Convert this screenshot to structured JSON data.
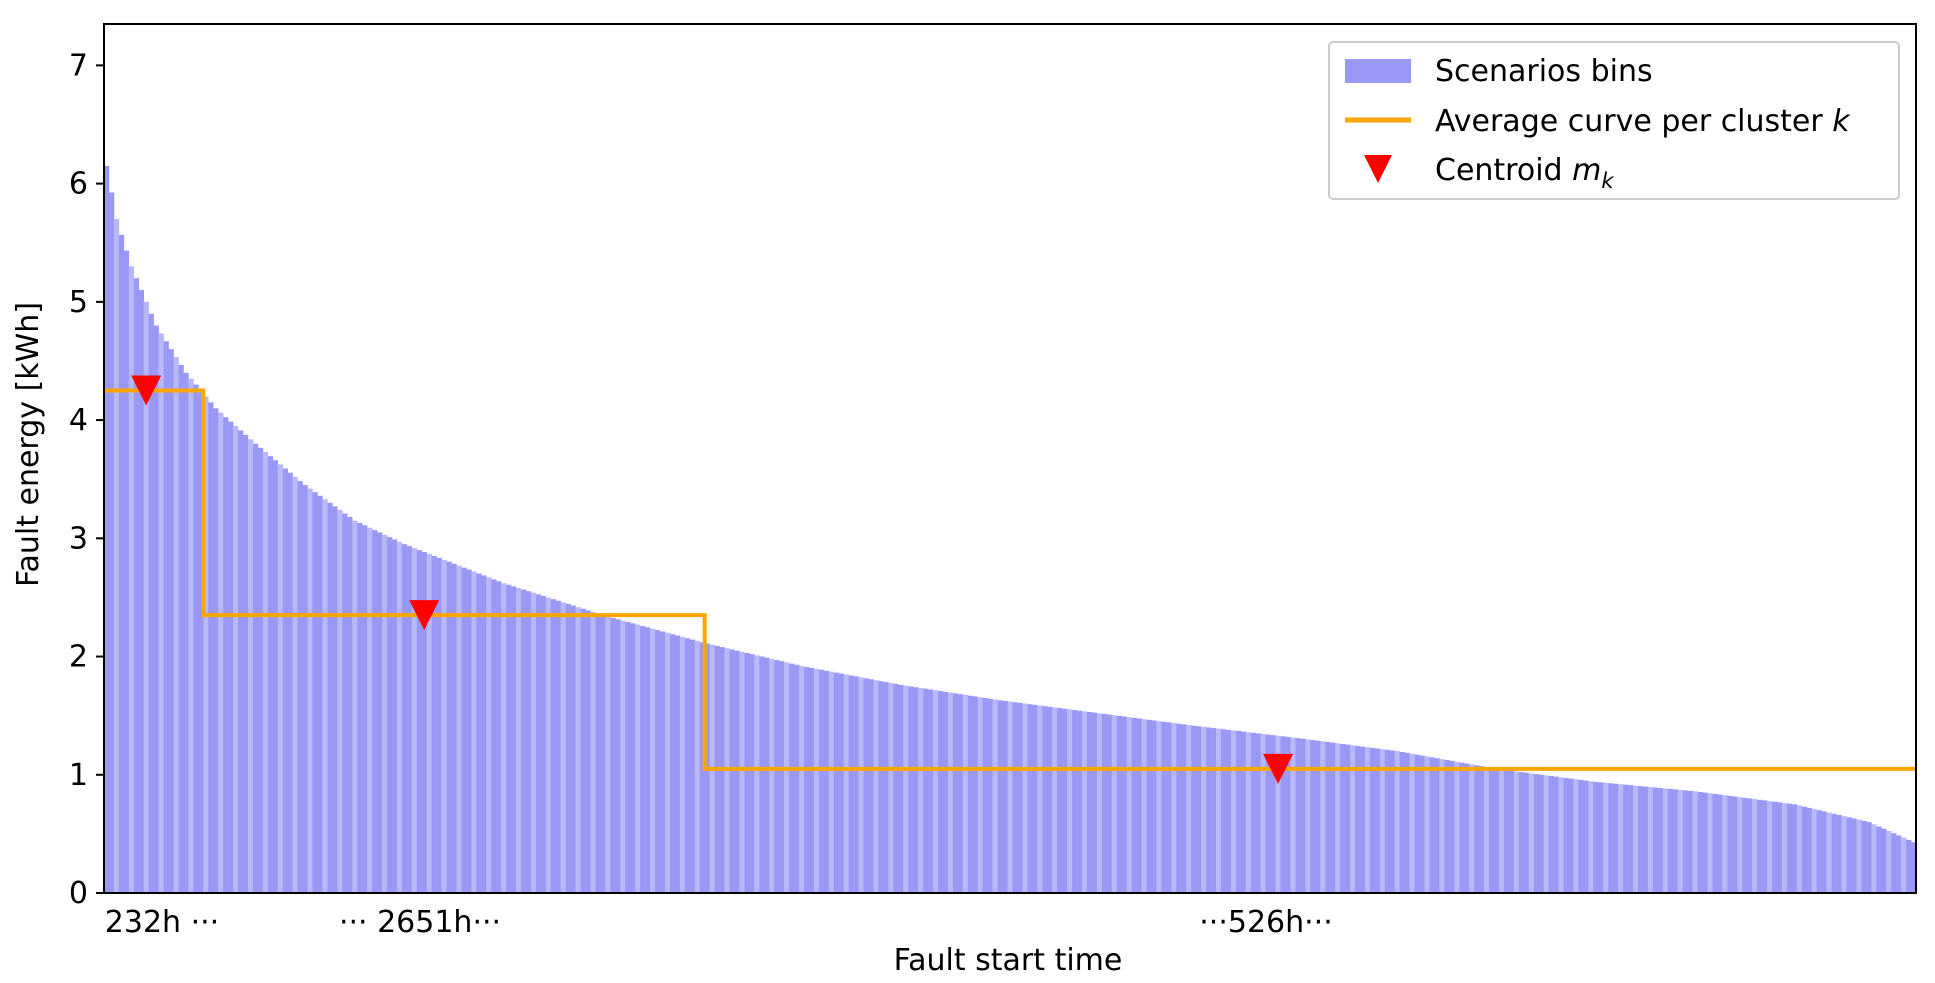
{
  "chart_data": {
    "type": "bar",
    "xlabel": "Fault start time",
    "ylabel": "Fault energy [kWh]",
    "ylim": [
      0,
      7.35
    ],
    "yticks": [
      "0",
      "1",
      "2",
      "3",
      "4",
      "5",
      "6",
      "7"
    ],
    "xtick_labels": [
      "232h ···",
      "··· 2651h···",
      "···526h···"
    ],
    "n_bins": 365,
    "bins_description": "sorted descending fault energy per scenario",
    "bin_curve_points": [
      {
        "i": 0,
        "v": 6.15
      },
      {
        "i": 2,
        "v": 5.7
      },
      {
        "i": 5,
        "v": 5.3
      },
      {
        "i": 10,
        "v": 4.8
      },
      {
        "i": 16,
        "v": 4.4
      },
      {
        "i": 22,
        "v": 4.1
      },
      {
        "i": 30,
        "v": 3.8
      },
      {
        "i": 40,
        "v": 3.45
      },
      {
        "i": 50,
        "v": 3.15
      },
      {
        "i": 60,
        "v": 2.95
      },
      {
        "i": 80,
        "v": 2.62
      },
      {
        "i": 100,
        "v": 2.35
      },
      {
        "i": 120,
        "v": 2.12
      },
      {
        "i": 140,
        "v": 1.92
      },
      {
        "i": 160,
        "v": 1.76
      },
      {
        "i": 180,
        "v": 1.63
      },
      {
        "i": 200,
        "v": 1.52
      },
      {
        "i": 220,
        "v": 1.41
      },
      {
        "i": 240,
        "v": 1.31
      },
      {
        "i": 260,
        "v": 1.2
      },
      {
        "i": 280,
        "v": 1.05
      },
      {
        "i": 300,
        "v": 0.94
      },
      {
        "i": 320,
        "v": 0.86
      },
      {
        "i": 340,
        "v": 0.75
      },
      {
        "i": 355,
        "v": 0.6
      },
      {
        "i": 364,
        "v": 0.43
      }
    ],
    "clusters": [
      {
        "start": 0,
        "end": 20,
        "average": 4.25,
        "centroid_index": 8,
        "centroid_value": 4.25
      },
      {
        "start": 20,
        "end": 121,
        "average": 2.35,
        "centroid_index": 64,
        "centroid_value": 2.35
      },
      {
        "start": 121,
        "end": 365,
        "average": 1.05,
        "centroid_index": 236,
        "centroid_value": 1.05
      }
    ],
    "legend": {
      "position": "top-right",
      "entries": [
        {
          "label": "Scenarios bins",
          "kind": "patch"
        },
        {
          "label": "Average curve per cluster ",
          "label_italic": "k",
          "kind": "line"
        },
        {
          "label": "Centroid ",
          "label_italic": "m",
          "label_sub": "k",
          "kind": "marker"
        }
      ]
    },
    "colors": {
      "bins": "#9999f5",
      "bins_alt": "#b8b8f8",
      "average": "#ffa500",
      "centroid": "#ff0000",
      "axis": "#000000"
    }
  }
}
